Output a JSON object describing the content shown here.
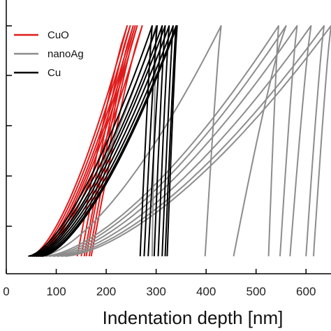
{
  "chart_data": {
    "type": "line",
    "xlabel": "Indentation depth [nm]",
    "ylabel": "",
    "xlim": [
      0,
      650
    ],
    "ylim": [
      0,
      1
    ],
    "x_ticks": [
      0,
      100,
      200,
      300,
      400,
      500,
      600
    ],
    "legend_position": "top-left",
    "legend": [
      {
        "name": "CuO",
        "color": "#e01b1b"
      },
      {
        "name": "nanoAg",
        "color": "#8c8c8c"
      },
      {
        "name": "Cu",
        "color": "#000000"
      }
    ],
    "series": [
      {
        "name": "CuO",
        "color": "#e01b1b",
        "curves": [
          {
            "x0": 48,
            "xmax": 242,
            "xf": 142
          },
          {
            "x0": 52,
            "xmax": 248,
            "xf": 150
          },
          {
            "x0": 56,
            "xmax": 254,
            "xf": 156
          },
          {
            "x0": 60,
            "xmax": 258,
            "xf": 160
          },
          {
            "x0": 64,
            "xmax": 262,
            "xf": 166
          },
          {
            "x0": 68,
            "xmax": 272,
            "xf": 170
          }
        ]
      },
      {
        "name": "nanoAg",
        "color": "#8c8c8c",
        "curves": [
          {
            "x0": 62,
            "xmax": 300,
            "xf": 292
          },
          {
            "x0": 70,
            "xmax": 430,
            "xf": 398
          },
          {
            "x0": 78,
            "xmax": 545,
            "xf": 525
          },
          {
            "x0": 86,
            "xmax": 560,
            "xf": 455
          },
          {
            "x0": 94,
            "xmax": 582,
            "xf": 548
          },
          {
            "x0": 102,
            "xmax": 610,
            "xf": 568
          },
          {
            "x0": 110,
            "xmax": 636,
            "xf": 600
          },
          {
            "x0": 118,
            "xmax": 650,
            "xf": 615
          }
        ]
      },
      {
        "name": "Cu",
        "color": "#000000",
        "curves": [
          {
            "x0": 44,
            "xmax": 292,
            "xf": 268
          },
          {
            "x0": 48,
            "xmax": 302,
            "xf": 276
          },
          {
            "x0": 52,
            "xmax": 312,
            "xf": 284
          },
          {
            "x0": 56,
            "xmax": 318,
            "xf": 296
          },
          {
            "x0": 60,
            "xmax": 326,
            "xf": 304
          },
          {
            "x0": 64,
            "xmax": 334,
            "xf": 312
          },
          {
            "x0": 68,
            "xmax": 340,
            "xf": 318
          },
          {
            "x0": 72,
            "xmax": 342,
            "xf": 322
          }
        ]
      }
    ]
  }
}
